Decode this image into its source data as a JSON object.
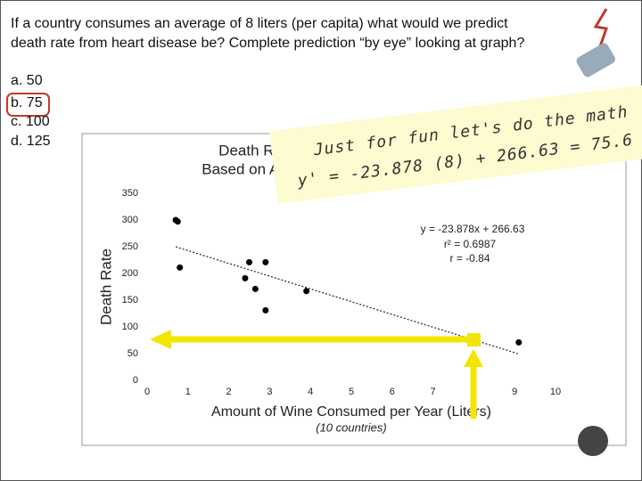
{
  "question": "If a country consumes an average of 8 liters (per capita) what would we predict death rate from heart disease be? Complete prediction “by eye” looking at graph?",
  "options": [
    "a. 50",
    "b. 75",
    "c. 100",
    "d. 125"
  ],
  "note": {
    "lines": [
      "Just for fun let's do the math",
      "y' = -23.878 (8) + 266.63 = 75.6"
    ]
  },
  "chart_data": {
    "type": "scatter",
    "title": [
      "Death Rates from Heart Disease",
      "Based on Amount of Wine Consumed"
    ],
    "x_label": "Amount of Wine Consumed per Year (Liters)",
    "subtitle": "(10 countries)",
    "y_label": "Death Rate",
    "x": [
      0.7,
      0.75,
      0.8,
      2.4,
      2.5,
      2.65,
      2.9,
      2.9,
      3.9,
      9.1
    ],
    "values": [
      300,
      297,
      211,
      191,
      221,
      171,
      221,
      131,
      167,
      71
    ],
    "color": "#000000",
    "xlim": [
      0,
      10
    ],
    "ylim": [
      0,
      350
    ],
    "xticks": [
      0,
      1,
      2,
      3,
      4,
      5,
      6,
      7,
      8,
      9,
      10
    ],
    "yticks": [
      0,
      50,
      100,
      150,
      200,
      250,
      300,
      350
    ],
    "trendline": {
      "slope": -23.878,
      "intercept": 266.63,
      "x": [
        0.7,
        9.1
      ],
      "labels": [
        "y = -23.878x + 266.63",
        "r² = 0.6987",
        "r = -0.84"
      ]
    }
  }
}
